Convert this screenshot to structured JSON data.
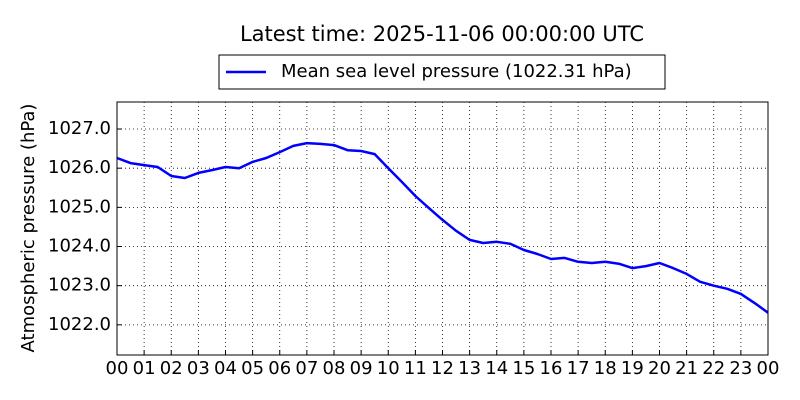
{
  "chart_data": {
    "type": "line",
    "title": "Latest time: 2025-11-06 00:00:00 UTC",
    "y_label": "Atmospheric pressure (hPa)",
    "x": [
      0,
      0.5,
      1,
      1.5,
      2,
      2.5,
      3,
      3.5,
      4,
      4.5,
      5,
      5.5,
      6,
      6.5,
      7,
      7.5,
      8,
      8.5,
      9,
      9.5,
      10,
      10.5,
      11,
      11.5,
      12,
      12.5,
      13,
      13.5,
      14,
      14.5,
      15,
      15.5,
      16,
      16.5,
      17,
      17.5,
      18,
      18.5,
      19,
      19.5,
      20,
      20.5,
      21,
      21.5,
      22,
      22.5,
      23,
      23.5,
      24
    ],
    "series": [
      {
        "name": "Mean sea level pressure (1022.31 hPa)",
        "color": "#0000ff",
        "values": [
          1026.26,
          1026.13,
          1026.08,
          1026.03,
          1025.8,
          1025.75,
          1025.88,
          1025.95,
          1026.03,
          1026.0,
          1026.16,
          1026.26,
          1026.41,
          1026.57,
          1026.64,
          1026.62,
          1026.59,
          1026.46,
          1026.44,
          1026.36,
          1026.0,
          1025.65,
          1025.29,
          1024.98,
          1024.68,
          1024.4,
          1024.17,
          1024.09,
          1024.12,
          1024.07,
          1023.91,
          1023.81,
          1023.68,
          1023.71,
          1023.61,
          1023.58,
          1023.61,
          1023.56,
          1023.45,
          1023.5,
          1023.58,
          1023.45,
          1023.3,
          1023.1,
          1023.0,
          1022.92,
          1022.79,
          1022.56,
          1022.31
        ]
      }
    ],
    "xlim": [
      0,
      24
    ],
    "xticks": [
      {
        "value": 0,
        "label": "00"
      },
      {
        "value": 1,
        "label": "01"
      },
      {
        "value": 2,
        "label": "02"
      },
      {
        "value": 3,
        "label": "03"
      },
      {
        "value": 4,
        "label": "04"
      },
      {
        "value": 5,
        "label": "05"
      },
      {
        "value": 6,
        "label": "06"
      },
      {
        "value": 7,
        "label": "07"
      },
      {
        "value": 8,
        "label": "08"
      },
      {
        "value": 9,
        "label": "09"
      },
      {
        "value": 10,
        "label": "10"
      },
      {
        "value": 11,
        "label": "11"
      },
      {
        "value": 12,
        "label": "12"
      },
      {
        "value": 13,
        "label": "13"
      },
      {
        "value": 14,
        "label": "14"
      },
      {
        "value": 15,
        "label": "15"
      },
      {
        "value": 16,
        "label": "16"
      },
      {
        "value": 17,
        "label": "17"
      },
      {
        "value": 18,
        "label": "18"
      },
      {
        "value": 19,
        "label": "19"
      },
      {
        "value": 20,
        "label": "20"
      },
      {
        "value": 21,
        "label": "21"
      },
      {
        "value": 22,
        "label": "22"
      },
      {
        "value": 23,
        "label": "23"
      },
      {
        "value": 24,
        "label": "00"
      }
    ],
    "ylim": [
      1021.23,
      1027.69
    ],
    "yticks": [
      {
        "value": 1022,
        "label": "1022.0"
      },
      {
        "value": 1023,
        "label": "1023.0"
      },
      {
        "value": 1024,
        "label": "1024.0"
      },
      {
        "value": 1025,
        "label": "1025.0"
      },
      {
        "value": 1026,
        "label": "1026.0"
      },
      {
        "value": 1027,
        "label": "1027.0"
      }
    ],
    "grid": true
  }
}
